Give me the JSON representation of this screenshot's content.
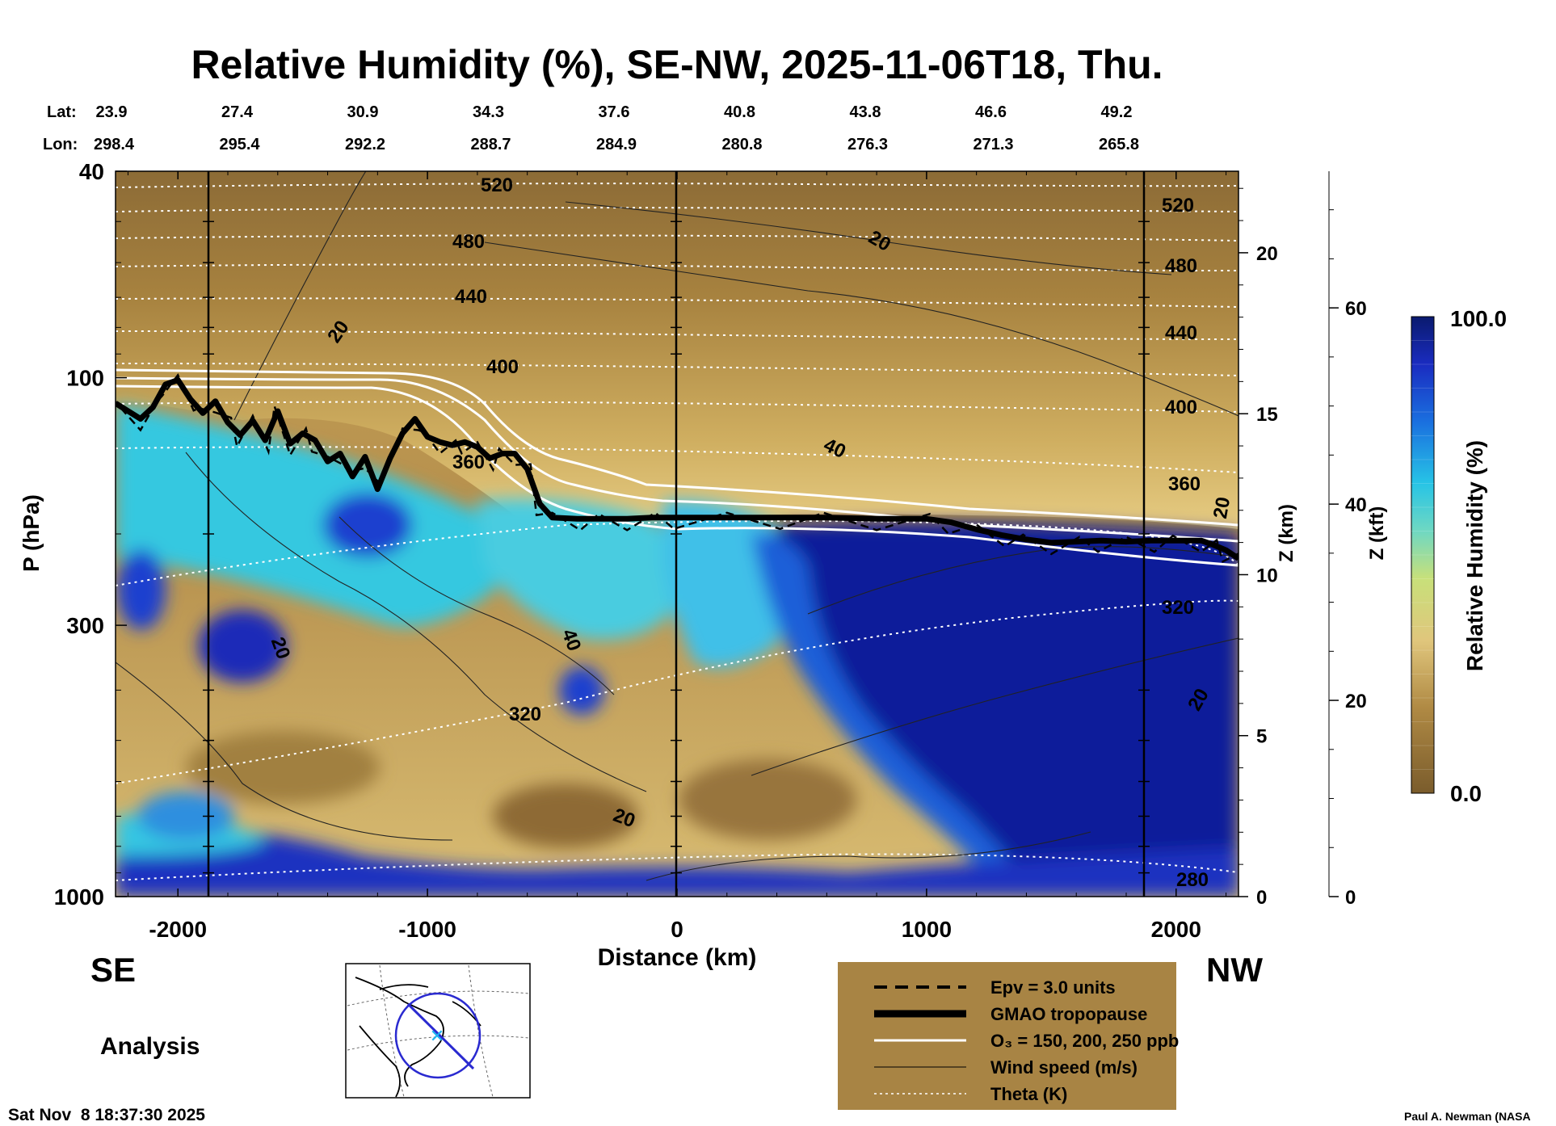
{
  "chart_data": {
    "type": "heatmap",
    "title": "Relative Humidity (%), SE-NW, 2025-11-06T18, Thu.",
    "latitude_label": "Lat:",
    "longitude_label": "Lon:",
    "latitudes": [
      "23.9",
      "27.4",
      "30.9",
      "34.3",
      "37.6",
      "40.8",
      "43.8",
      "46.6",
      "49.2"
    ],
    "longitudes": [
      "298.4",
      "295.4",
      "292.2",
      "288.7",
      "284.9",
      "280.8",
      "276.3",
      "271.3",
      "265.8"
    ],
    "xlabel": "Distance (km)",
    "xlim": [
      -2250,
      2250
    ],
    "x_ticks": [
      -2000,
      -1000,
      0,
      1000,
      2000
    ],
    "x_tick_labels": [
      "-2000",
      "-1000",
      "0",
      "1000",
      "2000"
    ],
    "ylabel": "P (hPa)",
    "ylim_hpa": [
      1000,
      40
    ],
    "y_ticks": [
      40,
      100,
      300,
      1000
    ],
    "y_tick_labels": [
      "40",
      "100",
      "300",
      "1000"
    ],
    "z_km_label": "Z (km)",
    "z_km_ticks": [
      "0",
      "5",
      "10",
      "15",
      "20"
    ],
    "z_kft_label": "Z (kft)",
    "z_kft_ticks": [
      "0",
      "20",
      "40",
      "60"
    ],
    "colorbar": {
      "label": "Relative Humidity (%)",
      "min_label": "0.0",
      "max_label": "100.0",
      "low_color": "#8b6a35",
      "mid_color": "#e2c57a",
      "cyan_color": "#27c4e6",
      "high_color": "#0a1a8a"
    },
    "direction_left": "SE",
    "direction_right": "NW",
    "theta_contours_K": [
      "520",
      "480",
      "440",
      "400",
      "360",
      "320",
      "280"
    ],
    "wind_contours_ms": [
      "20",
      "20",
      "40",
      "40",
      "20",
      "20",
      "20",
      "20"
    ],
    "legend": [
      {
        "label": "Epv = 3.0 units",
        "style": "dashed"
      },
      {
        "label": "GMAO tropopause",
        "style": "thick"
      },
      {
        "label": "O₃ = 150, 200, 250 ppb",
        "style": "white"
      },
      {
        "label": "Wind speed (m/s)",
        "style": "thin"
      },
      {
        "label": "Theta (K)",
        "style": "dotted"
      }
    ],
    "tropopause_series": {
      "name": "GMAO tropopause",
      "x_km": [
        -2250,
        -2150,
        -2100,
        -2050,
        -2000,
        -1950,
        -1900,
        -1850,
        -1800,
        -1750,
        -1700,
        -1650,
        -1600,
        -1550,
        -1500,
        -1450,
        -1400,
        -1350,
        -1300,
        -1250,
        -1200,
        -1150,
        -1100,
        -1050,
        -1000,
        -950,
        -900,
        -850,
        -800,
        -750,
        -700,
        -650,
        -600,
        -550,
        -500,
        -400,
        -300,
        -200,
        -100,
        0,
        200,
        400,
        600,
        800,
        1000,
        1100,
        1200,
        1300,
        1400,
        1500,
        1600,
        1700,
        1800,
        1900,
        2000,
        2100,
        2150,
        2200,
        2250
      ],
      "p_hpa": [
        112,
        120,
        114,
        103,
        101,
        110,
        117,
        111,
        122,
        129,
        121,
        132,
        116,
        134,
        128,
        132,
        145,
        140,
        155,
        142,
        164,
        143,
        128,
        120,
        130,
        133,
        135,
        133,
        136,
        143,
        140,
        140,
        150,
        175,
        186,
        187,
        187,
        187,
        186,
        186,
        186,
        186,
        186,
        187,
        187,
        190,
        196,
        201,
        205,
        208,
        207,
        206,
        207,
        206,
        206,
        206,
        210,
        215,
        223
      ]
    },
    "theta_280_label": "280",
    "analysis_label": "Analysis",
    "timestamp": "Sat Nov  8 18:37:30 2025",
    "credit": "Paul A. Newman (NASA"
  }
}
